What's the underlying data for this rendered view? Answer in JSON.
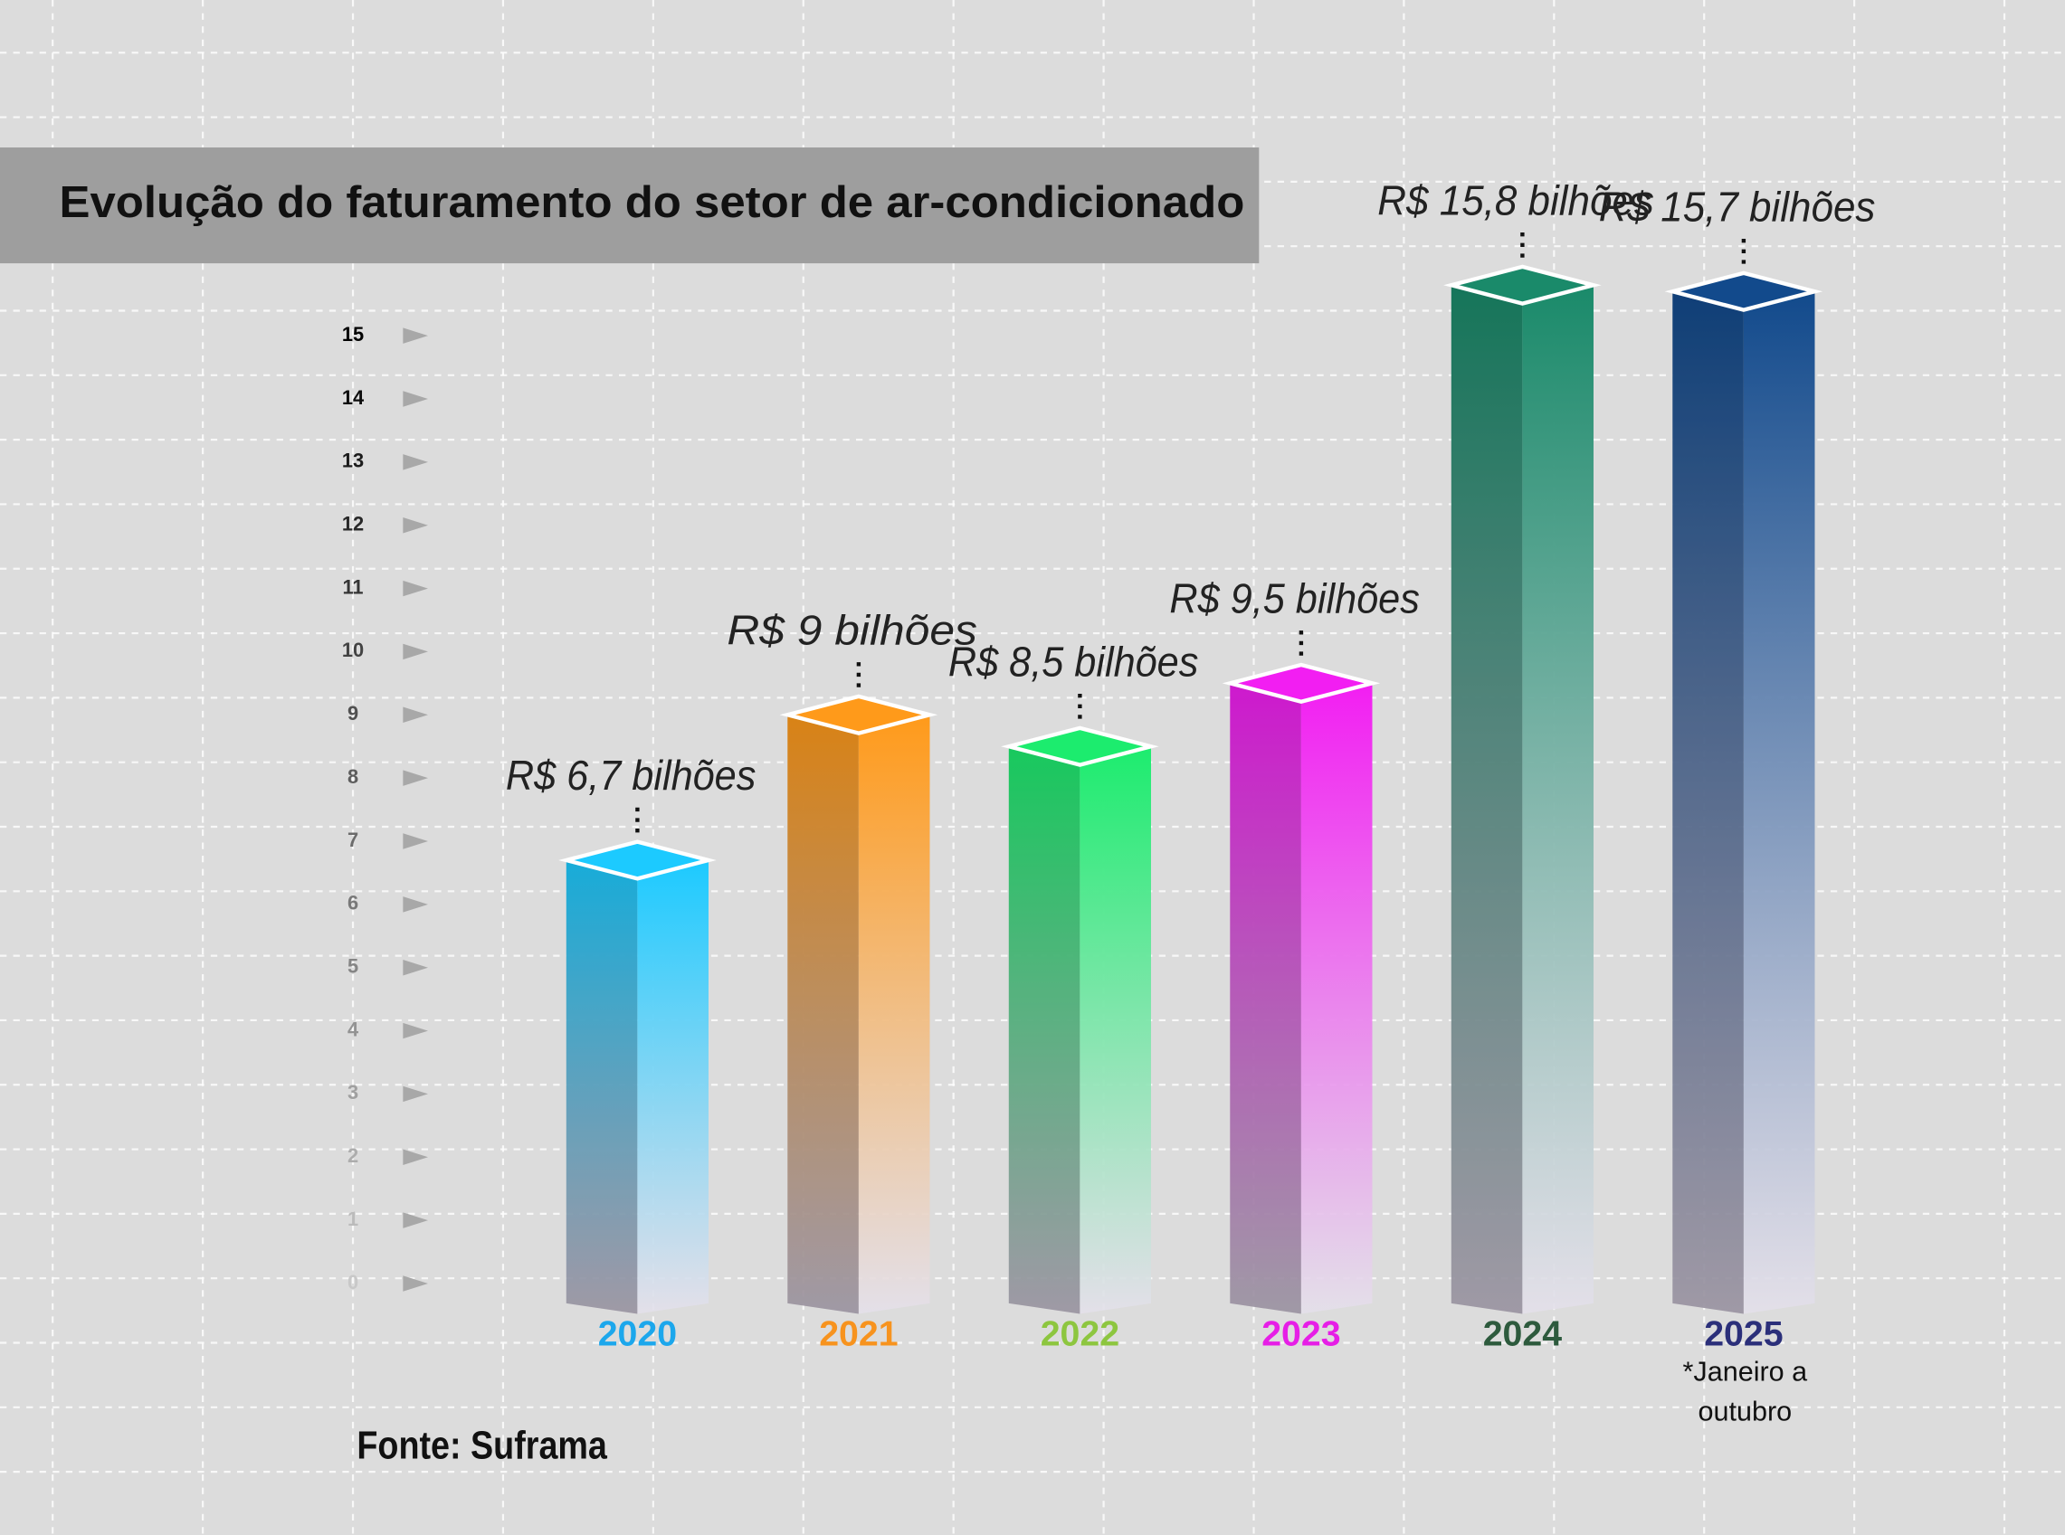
{
  "chart_data": {
    "type": "bar3d",
    "title": "Evolução do faturamento do setor de ar-condicionado",
    "categories": [
      "2020",
      "2021",
      "2022",
      "2023",
      "2024",
      "2025"
    ],
    "series": [
      {
        "values": [
          6.7,
          9,
          8.5,
          9.5,
          15.8,
          15.7
        ],
        "value_labels": [
          "R$ 6,7 bilhões",
          "R$ 9 bilhões",
          "R$ 8,5 bilhões",
          "R$ 9,5 bilhões",
          "R$ 15,8 bilhões",
          "R$ 15,7 bilhões"
        ],
        "colors": [
          "#1ccaff",
          "#ff9a1a",
          "#1cec6e",
          "#f21ef2",
          "#1a8a6a",
          "#124a8c"
        ],
        "label_colors": [
          "#1ca7ec",
          "#f7931e",
          "#8dc63f",
          "#e61ee6",
          "#2d5a3d",
          "#2b2f7a"
        ]
      }
    ],
    "ylim": [
      0,
      15
    ],
    "yticks": [
      0,
      1,
      2,
      3,
      4,
      5,
      6,
      7,
      8,
      9,
      10,
      11,
      12,
      13,
      14,
      15
    ],
    "annotations": [
      "*Janeiro a outubro"
    ],
    "source": "Fonte: Suframa"
  }
}
